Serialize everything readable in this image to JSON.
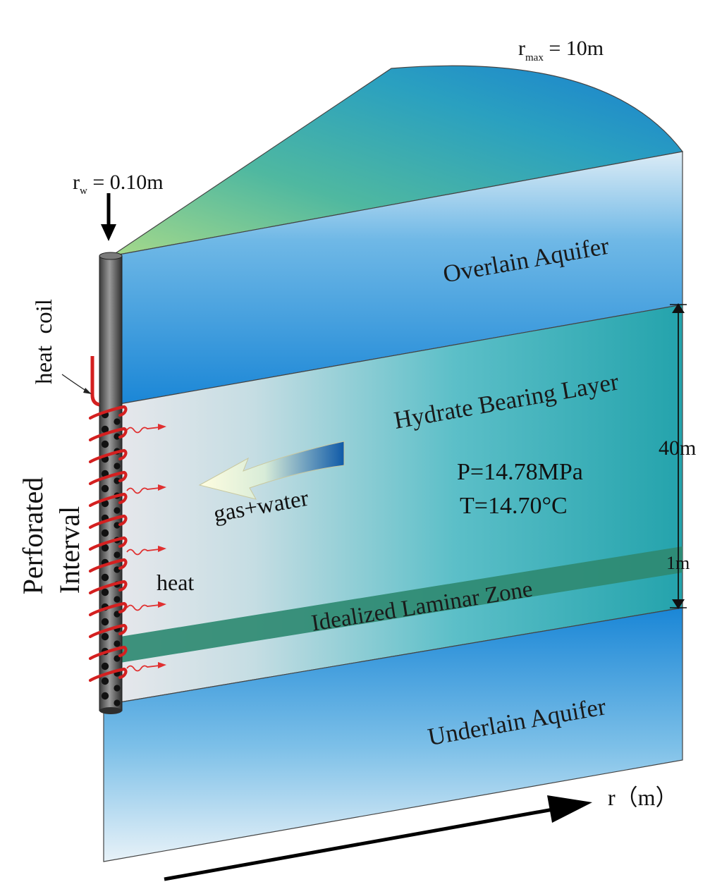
{
  "labels": {
    "r_max": {
      "main": "r",
      "sub": "max",
      "rest": " = 10m"
    },
    "r_w": {
      "main": "r",
      "sub": "w",
      "rest": " = 0.10m"
    },
    "heat_coil": "heat  coil",
    "perforated": "Perforated",
    "interval": "Interval",
    "overlain_aquifer": "Overlain Aquifer",
    "hydrate_bearing_layer": "Hydrate Bearing Layer",
    "pressure": "P=14.78MPa",
    "temperature": "T=14.70°C",
    "gas_water": "gas+water",
    "heat": "heat",
    "laminar_zone": "Idealized Laminar Zone",
    "thickness_total": "40m",
    "thickness_laminar": "1m",
    "underlain_aquifer": "Underlain Aquifer",
    "r_axis": "r（m）"
  },
  "colors": {
    "well_casing": "#555555",
    "heat_coil": "#d42020",
    "heat_arrow": "#e03030",
    "laminar_zone": "#2f8a72",
    "aquifer_blue": "#1e88d0",
    "hydrate_teal": "#30b0b5",
    "top_green": "#7ec87a"
  }
}
